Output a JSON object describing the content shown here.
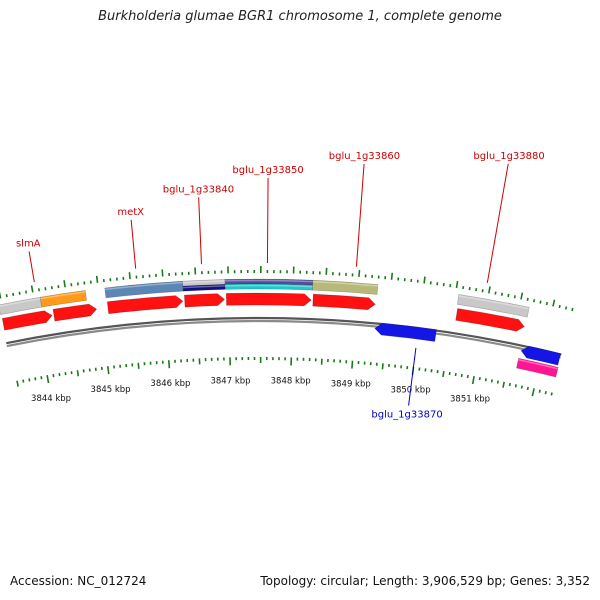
{
  "title": "Burkholderia glumae BGR1 chromosome 1, complete genome",
  "footer": {
    "accession": "Accession: NC_012724",
    "summary": "Topology: circular; Length: 3,906,529 bp; Genes: 3,352"
  },
  "colors": {
    "backbone": "#8a8a8a",
    "forward_cds": "#ff1111",
    "reverse_cds": "#1515e6",
    "reverse_other": "#ff1493",
    "gene_label": "#cc0000",
    "reverse_gene_label": "#0000cc",
    "tick": "#1a7a1a",
    "grey_feature": "#c8c8c8",
    "orange_feature": "#ff9a1a",
    "steel_feature": "#5b86b5",
    "navy_feature": "#101080",
    "purple_feature": "#4e4e9a",
    "cyan_feature": "#20c8c8",
    "olive_feature": "#b8b878"
  },
  "map_data": {
    "type": "genome-linear-view",
    "view_range_kbp": [
      3843.45,
      3852.3
    ],
    "scale_labels": [
      {
        "kbp": 3844,
        "label": "3844 kbp"
      },
      {
        "kbp": 3845,
        "label": "3845 kbp"
      },
      {
        "kbp": 3846,
        "label": "3846 kbp"
      },
      {
        "kbp": 3847,
        "label": "3847 kbp"
      },
      {
        "kbp": 3848,
        "label": "3848 kbp"
      },
      {
        "kbp": 3849,
        "label": "3849 kbp"
      },
      {
        "kbp": 3850,
        "label": "3850 kbp"
      },
      {
        "kbp": 3851,
        "label": "3851 kbp"
      }
    ],
    "genes": [
      {
        "name": "slmA",
        "strand": "+",
        "start_kbp": 3843.45,
        "end_kbp": 3844.25,
        "label_kbp": 3844.05,
        "label": "slmA",
        "label_row": 3
      },
      {
        "name": "unlabeled-1",
        "strand": "+",
        "start_kbp": 3844.25,
        "end_kbp": 3844.95,
        "label_kbp": null,
        "label": null,
        "label_row": null
      },
      {
        "name": "metX",
        "strand": "+",
        "start_kbp": 3845.1,
        "end_kbp": 3846.3,
        "label_kbp": 3845.6,
        "label": "metX",
        "label_row": 2
      },
      {
        "name": "bglu_1g33840",
        "strand": "+",
        "start_kbp": 3846.3,
        "end_kbp": 3846.95,
        "label_kbp": 3846.6,
        "label": "bglu_1g33840",
        "label_row": 1
      },
      {
        "name": "bglu_1g33850",
        "strand": "+",
        "start_kbp": 3846.95,
        "end_kbp": 3848.3,
        "label_kbp": 3847.6,
        "label": "bglu_1g33850",
        "label_row": 0
      },
      {
        "name": "bglu_1g33860",
        "strand": "+",
        "start_kbp": 3848.3,
        "end_kbp": 3849.3,
        "label_kbp": 3848.95,
        "label": "bglu_1g33860",
        "label_row": -1
      },
      {
        "name": "bglu_1g33870",
        "strand": "-",
        "start_kbp": 3849.3,
        "end_kbp": 3850.3,
        "label_kbp": 3850.0,
        "label": "bglu_1g33870",
        "label_row": null
      },
      {
        "name": "bglu_1g33880",
        "strand": "+",
        "start_kbp": 3850.55,
        "end_kbp": 3851.65,
        "label_kbp": 3850.95,
        "label": "bglu_1g33880",
        "label_row": -2
      },
      {
        "name": "unlabeled-2",
        "strand": "-",
        "start_kbp": 3851.65,
        "end_kbp": 3852.3,
        "label_kbp": null,
        "label": null,
        "label_row": null
      }
    ],
    "features": [
      {
        "name": "feature-grey-1",
        "start_kbp": 3843.45,
        "end_kbp": 3844.1,
        "color_key": "grey_feature",
        "lane": "outer"
      },
      {
        "name": "feature-orange",
        "start_kbp": 3844.1,
        "end_kbp": 3844.8,
        "color_key": "orange_feature",
        "lane": "outer"
      },
      {
        "name": "feature-steel",
        "start_kbp": 3845.1,
        "end_kbp": 3846.3,
        "color_key": "steel_feature",
        "lane": "outer"
      },
      {
        "name": "feature-grey-2",
        "start_kbp": 3846.3,
        "end_kbp": 3846.95,
        "color_key": "grey_feature",
        "lane": "outer-half"
      },
      {
        "name": "feature-navy",
        "start_kbp": 3846.3,
        "end_kbp": 3846.95,
        "color_key": "navy_feature",
        "lane": "inner-half"
      },
      {
        "name": "feature-purple",
        "start_kbp": 3846.95,
        "end_kbp": 3848.3,
        "color_key": "purple_feature",
        "lane": "outer-half"
      },
      {
        "name": "feature-cyan",
        "start_kbp": 3846.95,
        "end_kbp": 3848.3,
        "color_key": "cyan_feature",
        "lane": "inner-half"
      },
      {
        "name": "feature-olive",
        "start_kbp": 3848.3,
        "end_kbp": 3849.3,
        "color_key": "olive_feature",
        "lane": "outer"
      },
      {
        "name": "feature-grey-3",
        "start_kbp": 3850.55,
        "end_kbp": 3851.65,
        "color_key": "grey_feature",
        "lane": "outer"
      },
      {
        "name": "feature-magenta",
        "start_kbp": 3851.65,
        "end_kbp": 3852.3,
        "color_key": "reverse_other",
        "lane": "reverse-outer"
      }
    ]
  }
}
